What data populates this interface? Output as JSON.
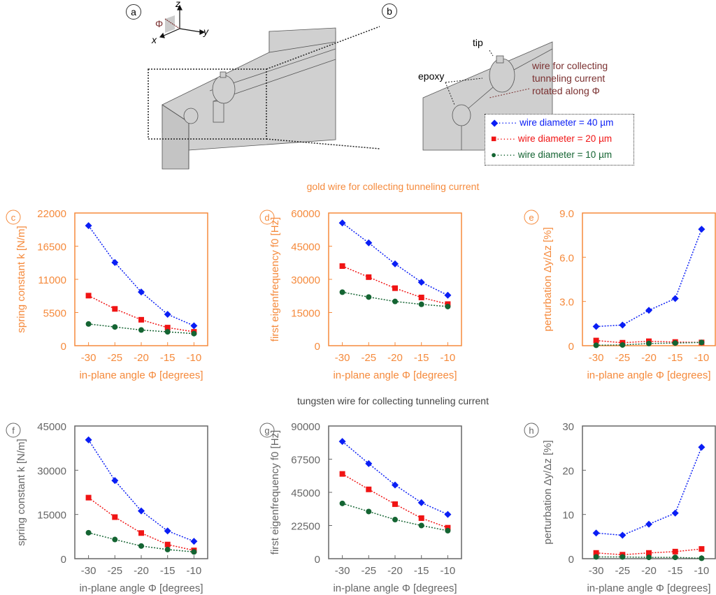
{
  "figure": {
    "panel_a": "a",
    "panel_b": "b",
    "axes": {
      "z": "z",
      "y": "y",
      "x": "x",
      "phi": "Φ"
    },
    "tip_label": "tip",
    "epoxy_label": "epoxy",
    "wire_label": [
      "wire for collecting",
      "tunneling current",
      "rotated along Φ"
    ],
    "gold_caption": "gold wire for collecting tunneling current",
    "tungsten_caption": "tungsten wire for collecting tunneling current",
    "colors": {
      "gold": "#f58a3c",
      "tungsten": "#666666",
      "wire_label": "#7a3030"
    }
  },
  "legend": [
    {
      "name": "wire diameter = 40 µm",
      "color": "#0a1ef5",
      "marker": "diamond"
    },
    {
      "name": "wire diameter = 20 µm",
      "color": "#f01414",
      "marker": "square"
    },
    {
      "name": "wire diameter = 10 µm",
      "color": "#146432",
      "marker": "circle"
    }
  ],
  "chart_data": [
    {
      "panel": "c",
      "type": "line",
      "xlabel": "in-plane angle Φ [degrees]",
      "ylabel": "spring constant k [N/m]",
      "ylim": [
        0,
        22000
      ],
      "yticks": [
        "0",
        "5500",
        "11000",
        "16500",
        "22000"
      ],
      "x": [
        -30,
        -25,
        -20,
        -15,
        -10
      ],
      "series": [
        {
          "name": "wire diameter = 40 µm",
          "values": [
            19900,
            13800,
            8900,
            5200,
            3300
          ]
        },
        {
          "name": "wire diameter = 20 µm",
          "values": [
            8300,
            6100,
            4300,
            3000,
            2300
          ]
        },
        {
          "name": "wire diameter = 10 µm",
          "values": [
            3600,
            3100,
            2600,
            2300,
            2000
          ]
        }
      ]
    },
    {
      "panel": "d",
      "type": "line",
      "xlabel": "in-plane angle Φ [degrees]",
      "ylabel": "first eigenfrequency f0 [Hz]",
      "ylim": [
        0,
        60000
      ],
      "yticks": [
        "0",
        "15000",
        "30000",
        "45000",
        "60000"
      ],
      "x": [
        -30,
        -25,
        -20,
        -15,
        -10
      ],
      "series": [
        {
          "name": "wire diameter = 40 µm",
          "values": [
            55500,
            46500,
            37000,
            28700,
            22800
          ]
        },
        {
          "name": "wire diameter = 20 µm",
          "values": [
            36000,
            31000,
            26000,
            21800,
            18800
          ]
        },
        {
          "name": "wire diameter = 10 µm",
          "values": [
            24200,
            22000,
            20000,
            18700,
            17700
          ]
        }
      ]
    },
    {
      "panel": "e",
      "type": "line",
      "xlabel": "in-plane angle Φ [degrees]",
      "ylabel": "perturbation Δy/Δz [%]",
      "ylim": [
        0,
        9
      ],
      "yticks": [
        "0",
        "3.0",
        "6.0",
        "9.0"
      ],
      "x": [
        -30,
        -25,
        -20,
        -15,
        -10
      ],
      "series": [
        {
          "name": "wire diameter = 40 µm",
          "values": [
            1.3,
            1.4,
            2.4,
            3.2,
            7.9
          ]
        },
        {
          "name": "wire diameter = 20 µm",
          "values": [
            0.35,
            0.2,
            0.3,
            0.25,
            0.22
          ]
        },
        {
          "name": "wire diameter = 10 µm",
          "values": [
            0.03,
            0.05,
            0.15,
            0.18,
            0.22
          ]
        }
      ]
    },
    {
      "panel": "f",
      "type": "line",
      "xlabel": "in-plane angle Φ [degrees]",
      "ylabel": "spring constant k [N/m]",
      "ylim": [
        0,
        45000
      ],
      "yticks": [
        "0",
        "15000",
        "30000",
        "45000"
      ],
      "x": [
        -30,
        -25,
        -20,
        -15,
        -10
      ],
      "series": [
        {
          "name": "wire diameter = 40 µm",
          "values": [
            40300,
            26500,
            16200,
            9400,
            5900
          ]
        },
        {
          "name": "wire diameter = 20 µm",
          "values": [
            20700,
            14100,
            8700,
            4800,
            2800
          ]
        },
        {
          "name": "wire diameter = 10 µm",
          "values": [
            8800,
            6500,
            4300,
            3100,
            2300
          ]
        }
      ]
    },
    {
      "panel": "g",
      "type": "line",
      "xlabel": "in-plane angle Φ [degrees]",
      "ylabel": "first eigenfrequency f0 [Hz]",
      "ylim": [
        0,
        90000
      ],
      "yticks": [
        "0",
        "22500",
        "45000",
        "67500",
        "90000"
      ],
      "x": [
        -30,
        -25,
        -20,
        -15,
        -10
      ],
      "series": [
        {
          "name": "wire diameter = 40 µm",
          "values": [
            79500,
            64500,
            50000,
            38000,
            30000
          ]
        },
        {
          "name": "wire diameter = 20 µm",
          "values": [
            57500,
            47000,
            37000,
            27500,
            21000
          ]
        },
        {
          "name": "wire diameter = 10 µm",
          "values": [
            37500,
            32000,
            26500,
            22500,
            19000
          ]
        }
      ]
    },
    {
      "panel": "h",
      "type": "line",
      "xlabel": "in-plane angle Φ [degrees]",
      "ylabel": "perturbation Δy/Δz [%]",
      "ylim": [
        0,
        30
      ],
      "yticks": [
        "0",
        "10",
        "20",
        "30"
      ],
      "x": [
        -30,
        -25,
        -20,
        -15,
        -10
      ],
      "series": [
        {
          "name": "wire diameter = 40 µm",
          "values": [
            5.8,
            5.3,
            7.8,
            10.3,
            25.2
          ]
        },
        {
          "name": "wire diameter = 20 µm",
          "values": [
            1.3,
            0.9,
            1.3,
            1.6,
            2.2
          ]
        },
        {
          "name": "wire diameter = 10 µm",
          "values": [
            0.4,
            0.4,
            0.3,
            0.3,
            0.1
          ]
        }
      ]
    }
  ]
}
